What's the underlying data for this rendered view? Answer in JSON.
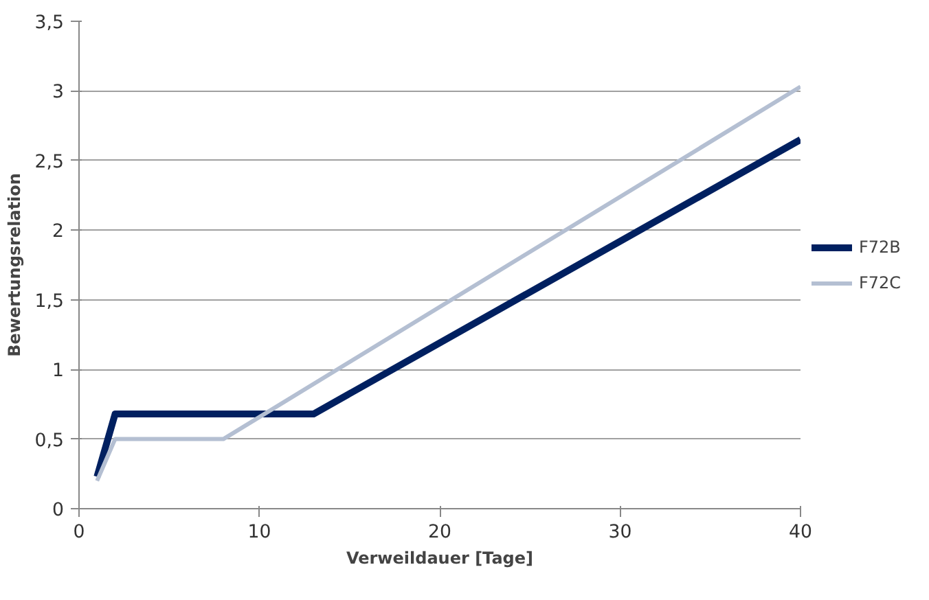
{
  "chart_data": {
    "type": "line",
    "xlabel": "Verweildauer [Tage]",
    "ylabel": "Bewertungsrelation",
    "xlim": [
      0,
      40
    ],
    "xticks": [
      0,
      10,
      20,
      30,
      40
    ],
    "ylim": [
      0,
      3.5
    ],
    "yticks": [
      0,
      {
        "value": 0.5,
        "label": "0,5"
      },
      1,
      {
        "value": 1.5,
        "label": "1,5"
      },
      2,
      {
        "value": 2.5,
        "label": "2,5"
      },
      3,
      {
        "value": 3.5,
        "label": "3,5"
      }
    ],
    "grid": "y",
    "legend": "right",
    "marker": "none",
    "line_style": "solid",
    "series": [
      {
        "name": "F72B",
        "color": "#002060",
        "x": [
          1,
          2,
          13,
          40
        ],
        "values": [
          0.23,
          0.68,
          0.68,
          2.65
        ]
      },
      {
        "name": "F72C",
        "color": "#b4bfd2",
        "x": [
          1,
          2,
          8,
          40
        ],
        "values": [
          0.2,
          0.5,
          0.5,
          3.03
        ]
      }
    ]
  }
}
